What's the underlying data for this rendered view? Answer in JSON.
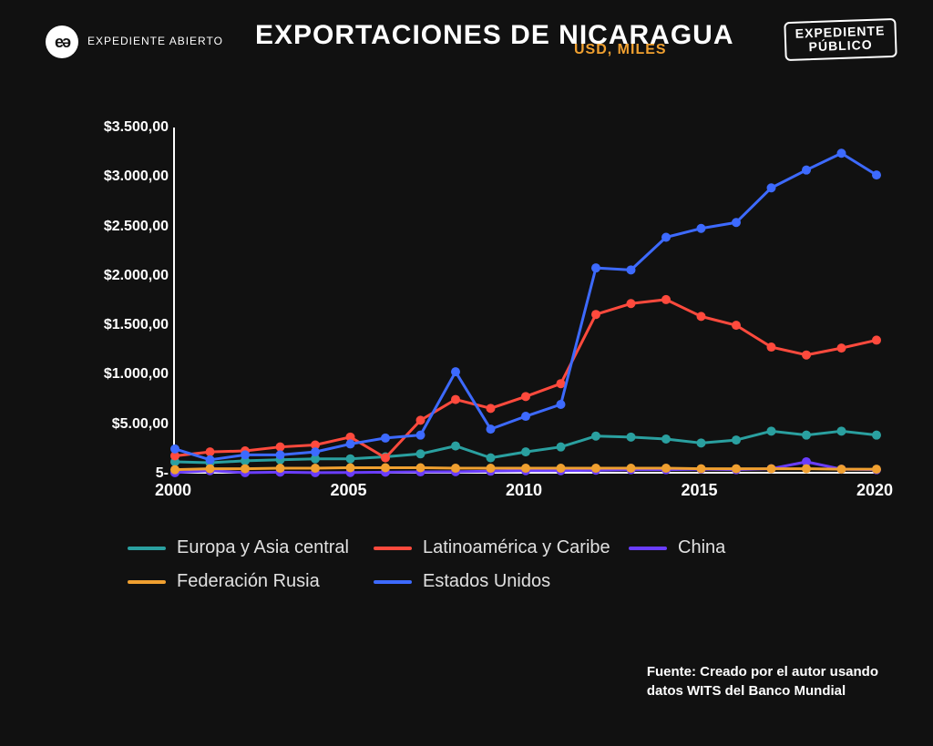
{
  "header": {
    "logo_left_text": "EXPEDIENTE\nABIERTO",
    "title": "EXPORTACIONES DE NICARAGUA",
    "subtitle": "USD, MILES",
    "logo_right_line1": "EXPEDIENTE",
    "logo_right_line2": "PÚBLICO"
  },
  "chart": {
    "type": "line",
    "background_color": "#111111",
    "axis_color": "#ffffff",
    "xlim": [
      2000,
      2020
    ],
    "ylim": [
      0,
      3500
    ],
    "xtick_labels": [
      "2000",
      "2005",
      "2010",
      "2015",
      "2020"
    ],
    "xtick_values": [
      2000,
      2005,
      2010,
      2015,
      2020
    ],
    "ytick_labels": [
      "5-",
      "$5.00,00",
      "$1.000,00",
      "$1.500,00",
      "$2.000,00",
      "$2.500,00",
      "$3.000,00",
      "$3.500,00"
    ],
    "ytick_values": [
      0,
      500,
      1000,
      1500,
      2000,
      2500,
      3000,
      3500
    ],
    "line_width": 3,
    "marker_radius": 5,
    "tick_fontsize": 16,
    "years": [
      2000,
      2001,
      2002,
      2003,
      2004,
      2005,
      2006,
      2007,
      2008,
      2009,
      2010,
      2011,
      2012,
      2013,
      2014,
      2015,
      2016,
      2017,
      2018,
      2019,
      2020
    ],
    "series": [
      {
        "name": "Europa y Asia central",
        "color": "#2aa0a0",
        "values": [
          120,
          110,
          130,
          140,
          150,
          150,
          170,
          200,
          280,
          160,
          220,
          270,
          380,
          370,
          350,
          310,
          340,
          430,
          390,
          430,
          390
        ]
      },
      {
        "name": "Latinoamérica y Caribe",
        "color": "#ff4a3d",
        "values": [
          180,
          220,
          230,
          270,
          290,
          370,
          160,
          540,
          750,
          660,
          780,
          910,
          1610,
          1720,
          1760,
          1590,
          1500,
          1280,
          1200,
          1270,
          1350
        ]
      },
      {
        "name": "China",
        "color": "#6a3dff",
        "values": [
          10,
          30,
          10,
          15,
          10,
          12,
          15,
          18,
          20,
          25,
          30,
          30,
          35,
          40,
          40,
          45,
          40,
          50,
          120,
          45,
          40
        ]
      },
      {
        "name": "Federación Rusia",
        "color": "#f0a030",
        "values": [
          40,
          50,
          50,
          55,
          55,
          60,
          60,
          60,
          55,
          55,
          55,
          55,
          55,
          55,
          55,
          50,
          50,
          50,
          50,
          45,
          45
        ]
      },
      {
        "name": "Estados Unidos",
        "color": "#3d6aff",
        "values": [
          250,
          140,
          190,
          190,
          220,
          300,
          360,
          390,
          1030,
          450,
          580,
          700,
          2080,
          2060,
          2390,
          2480,
          2540,
          2890,
          3070,
          3240,
          3020
        ]
      }
    ]
  },
  "legend": {
    "items": [
      {
        "label": "Europa y Asia central",
        "color": "#2aa0a0"
      },
      {
        "label": "Latinoamérica y Caribe",
        "color": "#ff4a3d"
      },
      {
        "label": "China",
        "color": "#6a3dff"
      },
      {
        "label": "Federación Rusia",
        "color": "#f0a030"
      },
      {
        "label": "Estados Unidos",
        "color": "#3d6aff"
      }
    ]
  },
  "source": {
    "line1": "Fuente: Creado por el autor usando",
    "line2": "datos WITS del Banco Mundial"
  }
}
